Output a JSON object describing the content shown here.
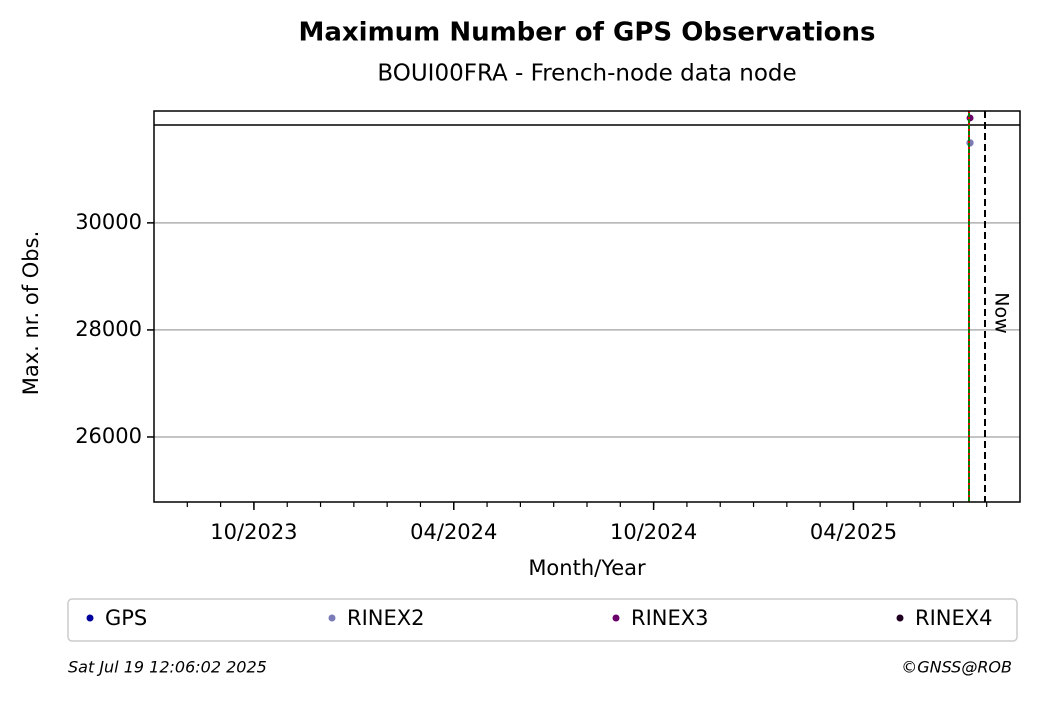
{
  "chart_data": {
    "type": "scatter",
    "title": "Maximum Number of GPS Observations",
    "subtitle": "BOUI00FRA - French-node data node",
    "x_label": "Month/Year",
    "y_label": "Max. nr. of Obs.",
    "annotation": "Now",
    "x": [
      "2025-07"
    ],
    "series": [
      {
        "name": "GPS",
        "color": "#00009c",
        "values": [
          31495
        ]
      },
      {
        "name": "RINEX2",
        "color": "#7b7bb8",
        "values": [
          31495
        ]
      },
      {
        "name": "RINEX3",
        "color": "#6a006a",
        "values": [
          31960
        ]
      },
      {
        "name": "RINEX4",
        "color": "#200020",
        "values": [
          null
        ]
      }
    ],
    "xlim": [
      "2023-07",
      "2025-09"
    ],
    "xticks": [
      {
        "value": "2023-10",
        "label": "10/2023"
      },
      {
        "value": "2024-04",
        "label": "04/2024"
      },
      {
        "value": "2024-10",
        "label": "10/2024"
      },
      {
        "value": "2025-04",
        "label": "04/2025"
      }
    ],
    "ylim": [
      24785,
      32090
    ],
    "yticks": [
      26000,
      28000,
      30000
    ],
    "grid": true
  },
  "footer": {
    "timestamp": "Sat Jul 19 12:06:02 2025",
    "credit": "©GNSS@ROB"
  }
}
